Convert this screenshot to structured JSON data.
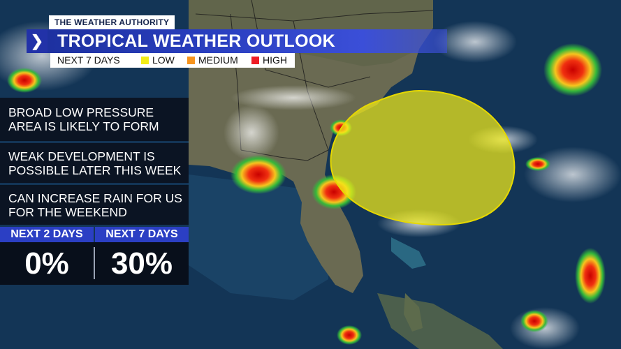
{
  "brand": "THE WEATHER AUTHORITY",
  "title": "TROPICAL WEATHER OUTLOOK",
  "legend": {
    "period": "NEXT 7 DAYS",
    "items": [
      {
        "label": "LOW",
        "color": "#f2ec17"
      },
      {
        "label": "MEDIUM",
        "color": "#f7941d"
      },
      {
        "label": "HIGH",
        "color": "#ee1c25"
      }
    ]
  },
  "panels": [
    {
      "text": "BROAD LOW PRESSURE AREA IS LIKELY TO FORM"
    },
    {
      "text": "WEAK DEVELOPMENT IS POSSIBLE LATER THIS WEEK"
    },
    {
      "text": "CAN INCREASE RAIN FOR US FOR THE WEEKEND"
    }
  ],
  "chances": [
    {
      "label": "NEXT 2 DAYS",
      "value": "0%"
    },
    {
      "label": "NEXT 7 DAYS",
      "value": "30%"
    }
  ],
  "outlook_area": {
    "risk": "LOW",
    "color": "#f2ec17"
  }
}
